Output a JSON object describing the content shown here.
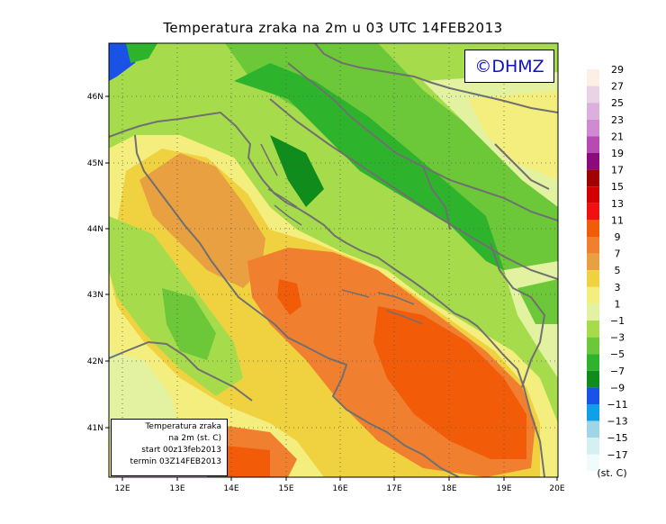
{
  "title": "Temperatura zraka na 2m u 03 UTC 14FEB2013",
  "logo": "©DHMZ",
  "info": {
    "line1": "Temperatura zraka",
    "line2": "na 2m (st. C)",
    "line3": "start 00z13feb2013",
    "line4": "termin 03Z14FEB2013"
  },
  "lat_ticks": [
    "46N",
    "45N",
    "44N",
    "43N",
    "42N",
    "41N"
  ],
  "lon_ticks": [
    "12E",
    "13E",
    "14E",
    "15E",
    "16E",
    "17E",
    "18E",
    "19E",
    "20E"
  ],
  "colorbar": {
    "labels": [
      "29",
      "27",
      "25",
      "23",
      "21",
      "19",
      "17",
      "15",
      "13",
      "11",
      "9",
      "7",
      "5",
      "3",
      "1",
      "−1",
      "−3",
      "−5",
      "−7",
      "−9",
      "−11",
      "−13",
      "−15",
      "−17"
    ],
    "unit": "(st. C)",
    "colors": [
      "#fdf0e2",
      "#e9d4e6",
      "#dcb0dc",
      "#cf8ad2",
      "#b84ab4",
      "#8c0a7c",
      "#a00000",
      "#d20000",
      "#f01010",
      "#f25c08",
      "#f08030",
      "#e8a040",
      "#f0d240",
      "#f4ee7e",
      "#e2f2a0",
      "#a6dc4c",
      "#6cc838",
      "#2eb42c",
      "#108c1c",
      "#1a52e8",
      "#10a0e8",
      "#9ed6e8",
      "#d4f0f0",
      "#f0fcfc"
    ]
  }
}
